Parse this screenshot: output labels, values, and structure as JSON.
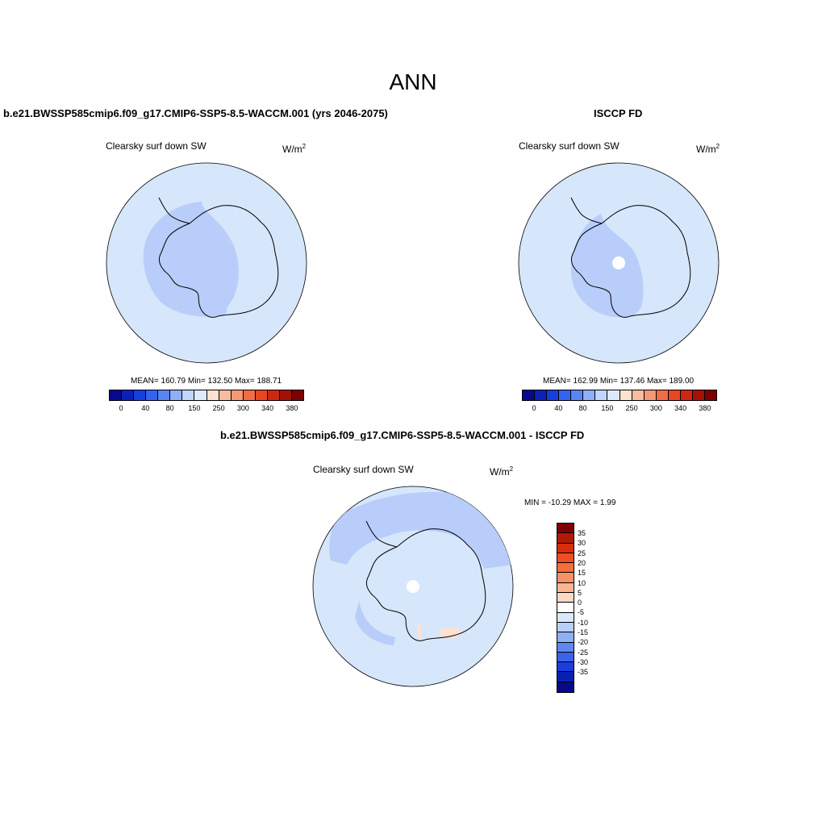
{
  "main_title": "ANN",
  "panels": [
    {
      "title": "b.e21.BWSSP585cmip6.f09_g17.CMIP6-SSP5-8.5-WACCM.001 (yrs 2046-2075)",
      "variable": "Clearsky surf down SW",
      "units_base": "W/m",
      "units_exp": "2",
      "stats": "MEAN= 160.79  Min= 132.50  Max= 188.71"
    },
    {
      "title": "ISCCP FD",
      "variable": "Clearsky surf down SW",
      "units_base": "W/m",
      "units_exp": "2",
      "stats": "MEAN= 162.99  Min= 137.46  Max= 189.00"
    },
    {
      "title": "b.e21.BWSSP585cmip6.f09_g17.CMIP6-SSP5-8.5-WACCM.001 - ISCCP FD",
      "variable": "Clearsky surf down SW",
      "units_base": "W/m",
      "units_exp": "2",
      "stats": "MIN = -10.29 MAX =   1.99"
    }
  ],
  "colorbar_h": {
    "colors": [
      "#08088c",
      "#0a22b8",
      "#1540dd",
      "#3563f0",
      "#5a85f5",
      "#90aff7",
      "#c2d5fa",
      "#dee9fb",
      "#fde2d2",
      "#f8bca1",
      "#f59873",
      "#f06d47",
      "#e84722",
      "#d02810",
      "#a41206",
      "#7e0000"
    ],
    "ticks": [
      "0",
      "40",
      "80",
      "150",
      "250",
      "300",
      "340",
      "380"
    ]
  },
  "colorbar_v": {
    "colors": [
      "#7e0000",
      "#b01a06",
      "#d82c0d",
      "#f04e22",
      "#f46e3c",
      "#f79268",
      "#fbb592",
      "#fdd8c4",
      "#ffffff",
      "#dbe8fc",
      "#b9d0fa",
      "#8eb0f7",
      "#5f88f3",
      "#3a63ea",
      "#1b3edb",
      "#0a20b5",
      "#06098a"
    ],
    "ticks": [
      "35",
      "30",
      "25",
      "20",
      "15",
      "10",
      "5",
      "0",
      "-5",
      "-10",
      "-15",
      "-20",
      "-25",
      "-30",
      "-35"
    ]
  }
}
